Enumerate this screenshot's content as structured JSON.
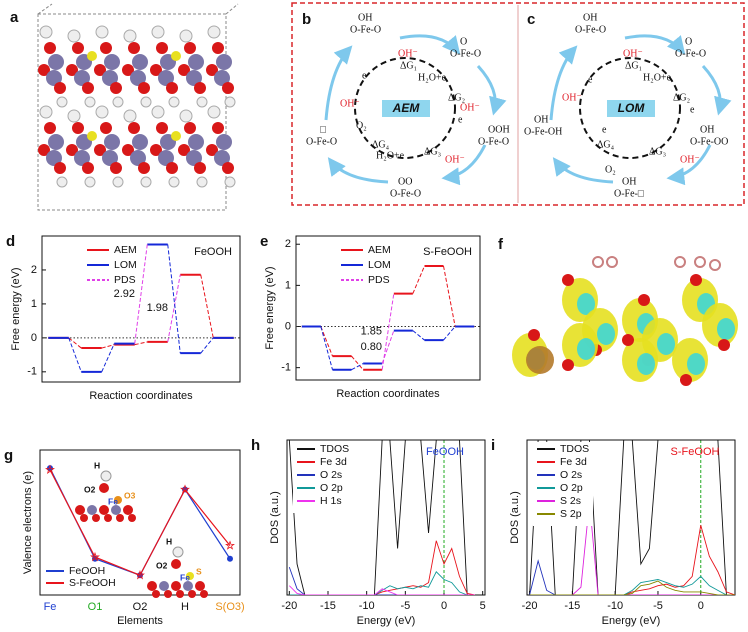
{
  "figure_labels": [
    "a",
    "b",
    "c",
    "f"
  ],
  "aem": {
    "center": "AEM",
    "nodes": [
      {
        "top": "OH",
        "bottom": "O-Fe-O"
      },
      {
        "top": "O",
        "bottom": "O-Fe-O"
      },
      {
        "top": "OOH",
        "bottom": "O-Fe-O"
      },
      {
        "top": "OO",
        "bottom": "O-Fe-O"
      },
      {
        "top": "□",
        "bottom": "O-Fe-O"
      }
    ],
    "steps": [
      "ΔG₁",
      "ΔG₂",
      "ΔG₃",
      "ΔG₄"
    ],
    "species": [
      "OH⁻",
      "H₂O+e",
      "OH⁻",
      "e",
      "H₂O+e",
      "OH⁻",
      "O₂",
      "OH⁻",
      "e"
    ]
  },
  "lom": {
    "center": "LOM",
    "nodes": [
      {
        "top": "OH",
        "bottom": "O-Fe-O"
      },
      {
        "top": "O",
        "bottom": "O-Fe-O"
      },
      {
        "top": "OH",
        "bottom": "O-Fe-OO"
      },
      {
        "top": "OH",
        "bottom": "O-Fe-□"
      },
      {
        "top": "OH",
        "bottom": "O-Fe-OH"
      }
    ],
    "steps": [
      "ΔG₁",
      "ΔG₂",
      "ΔG₃",
      "ΔG₄"
    ],
    "species": [
      "OH⁻",
      "H₂O+e",
      "e",
      "OH⁻",
      "e",
      "O₂",
      "OH⁻",
      "e"
    ]
  },
  "chart_data": [
    {
      "type": "step",
      "panel": "d",
      "y_label": "Free energy (eV)",
      "x_label": "Reaction coordinates",
      "inset_label": "FeOOH",
      "categories": [
        null,
        null,
        null,
        null,
        null,
        null
      ],
      "series": [
        {
          "name": "AEM",
          "color": "#e8141c",
          "values": [
            0,
            -0.3,
            -0.2,
            -0.12,
            1.86,
            0
          ]
        },
        {
          "name": "LOM",
          "color": "#1428d8",
          "values": [
            0,
            -1.0,
            -0.17,
            2.75,
            -0.45,
            0
          ]
        }
      ],
      "pds": {
        "name": "PDS",
        "color": "#e040e8"
      },
      "annotations": [
        "1.98",
        "2.92"
      ],
      "ylim": [
        -1.3,
        3.0
      ],
      "yticks": [
        -1,
        0,
        1,
        2
      ],
      "zero_line": true,
      "legend": "top-left"
    },
    {
      "type": "step",
      "panel": "e",
      "y_label": "Free energy (eV)",
      "x_label": "Reaction coordinates",
      "inset_label": "S-FeOOH",
      "categories": [
        null,
        null,
        null,
        null,
        null,
        null
      ],
      "series": [
        {
          "name": "AEM",
          "color": "#e8141c",
          "values": [
            0,
            -0.72,
            -1.05,
            0.8,
            1.47,
            0
          ]
        },
        {
          "name": "LOM",
          "color": "#1428d8",
          "values": [
            0,
            -1.05,
            -0.9,
            -0.1,
            -0.33,
            0
          ]
        }
      ],
      "pds": {
        "name": "PDS",
        "color": "#e040e8"
      },
      "annotations": [
        "1.85",
        "0.80"
      ],
      "ylim": [
        -1.3,
        2.2
      ],
      "yticks": [
        -1,
        0,
        1,
        2
      ],
      "zero_line": true,
      "legend": "top-left"
    },
    {
      "type": "line",
      "panel": "g",
      "y_label": "Valence electrons (e)",
      "x_label": "Elements",
      "categories": [
        "Fe",
        "O1",
        "O2",
        "H",
        "S(O3)"
      ],
      "category_colors": [
        "#1f3fd0",
        "#22aa22",
        "#111111",
        "#111111",
        "#e8901a"
      ],
      "series": [
        {
          "name": "FeOOH",
          "color": "#1f3fd0",
          "marker": "circle",
          "values": [
            1.65,
            -1.1,
            -1.6,
            1.0,
            -1.1
          ]
        },
        {
          "name": "S-FeOOH",
          "color": "#e8141c",
          "marker": "star",
          "values": [
            1.6,
            -1.05,
            -1.6,
            1.0,
            -0.7
          ]
        }
      ],
      "insets": [
        [
          "H",
          "O2",
          "Fe",
          "O3"
        ],
        [
          "H",
          "O2",
          "Fe",
          "S"
        ]
      ],
      "ylim": [
        -2.2,
        2.2
      ],
      "legend": "bottom-left"
    },
    {
      "type": "dos",
      "panel": "h",
      "y_label": "DOS (a.u.)",
      "x_label": "Energy (eV)",
      "inset_label": "FeOOH",
      "inset_color": "#1f3fd0",
      "x": [
        -20,
        -19,
        -18,
        -17,
        -16,
        -15,
        -14,
        -13,
        -12,
        -11,
        -10,
        -9,
        -8,
        -7,
        -6,
        -5,
        -4,
        -3,
        -2,
        -1,
        0,
        1,
        2,
        3,
        4
      ],
      "series": [
        {
          "name": "TDOS",
          "color": "#111111",
          "values": [
            10,
            2,
            0,
            0,
            0,
            0,
            0,
            0,
            0,
            0,
            0,
            0,
            10,
            10,
            3,
            10,
            10,
            10,
            4,
            10,
            10,
            10,
            10,
            0,
            0
          ]
        },
        {
          "name": "Fe 3d",
          "color": "#e8141c",
          "values": [
            0,
            0,
            0,
            0,
            0,
            0,
            0,
            0,
            0,
            0,
            0,
            0,
            0.2,
            0.3,
            0.4,
            0.5,
            0.6,
            0.5,
            0.8,
            3.5,
            2.0,
            3.0,
            1.2,
            0.1,
            0
          ]
        },
        {
          "name": "O 2s",
          "color": "#2233bb",
          "values": [
            1.8,
            0.4,
            0,
            0,
            0,
            0,
            0,
            0,
            0,
            0,
            0,
            0,
            0,
            0,
            0,
            0,
            0,
            0,
            0,
            0,
            0,
            0,
            0,
            0,
            0
          ]
        },
        {
          "name": "O 2p",
          "color": "#119999",
          "values": [
            0,
            0,
            0,
            0,
            0,
            0,
            0,
            0,
            0,
            0,
            0,
            0,
            0.3,
            0.6,
            0.4,
            0.5,
            0.4,
            0.6,
            0.5,
            1.5,
            1.0,
            0.8,
            0.2,
            0,
            0
          ]
        },
        {
          "name": "H 1s",
          "color": "#ee33ee",
          "values": [
            0.6,
            0.1,
            0,
            0,
            0,
            0,
            0,
            0,
            0,
            0,
            0,
            0,
            0.4,
            0.2,
            0,
            0,
            0,
            0,
            0,
            0,
            0,
            0,
            0,
            0,
            0
          ]
        }
      ],
      "xlim": [
        -20.3,
        5.3
      ],
      "xticks": [
        -20,
        -15,
        -10,
        -5,
        0,
        5
      ],
      "ylim": [
        0,
        10
      ],
      "fermi_line": true,
      "legend": "top-left"
    },
    {
      "type": "dos",
      "panel": "i",
      "y_label": "DOS (a.u.)",
      "x_label": "Energy (eV)",
      "inset_label": "S-FeOOH",
      "inset_color": "#e8141c",
      "x": [
        -20,
        -19,
        -18,
        -17,
        -16,
        -15,
        -14,
        -13,
        -12,
        -11,
        -10,
        -9,
        -8,
        -7,
        -6,
        -5,
        -4,
        -3,
        -2,
        -1,
        0,
        1,
        2,
        3,
        4
      ],
      "series": [
        {
          "name": "TDOS",
          "color": "#111111",
          "values": [
            0,
            10,
            10,
            0,
            0,
            0,
            10,
            10,
            0,
            0,
            0,
            10,
            10,
            2,
            3,
            10,
            10,
            10,
            10,
            10,
            10,
            10,
            10,
            0,
            0
          ]
        },
        {
          "name": "Fe 3d",
          "color": "#e8141c",
          "values": [
            0,
            0,
            0,
            0,
            0,
            0,
            0,
            0,
            0,
            0,
            0,
            0,
            0.2,
            0.3,
            0.4,
            0.6,
            0.7,
            0.5,
            0.6,
            1.2,
            4.5,
            2.5,
            1.5,
            0.2,
            0
          ]
        },
        {
          "name": "O 2s",
          "color": "#2233bb",
          "values": [
            0,
            2.2,
            0.3,
            0,
            0,
            0,
            0,
            0,
            0,
            0,
            0,
            0,
            0,
            0,
            0,
            0,
            0,
            0,
            0,
            0,
            0,
            0,
            0,
            0,
            0
          ]
        },
        {
          "name": "O 2p",
          "color": "#119999",
          "values": [
            0,
            0,
            0,
            0,
            0,
            0,
            0,
            0,
            0,
            0,
            0,
            0,
            0.3,
            0.8,
            0.9,
            1.0,
            0.8,
            0.6,
            0.5,
            0.7,
            1.2,
            0.6,
            0.3,
            0,
            0
          ]
        },
        {
          "name": "S 2s",
          "color": "#dd22dd",
          "values": [
            0,
            0,
            0,
            0,
            0,
            0,
            0.5,
            6.0,
            0,
            0,
            0,
            0,
            0,
            0,
            0,
            0,
            0,
            0,
            0,
            0,
            0,
            0,
            0,
            0,
            0
          ]
        },
        {
          "name": "S 2p",
          "color": "#888800",
          "values": [
            0,
            0,
            0,
            0,
            0,
            0,
            0,
            0,
            0,
            0,
            0,
            0,
            0.1,
            0.6,
            0.7,
            0.9,
            0.5,
            0.3,
            0.2,
            0.2,
            0.2,
            0.1,
            0,
            0,
            0
          ]
        }
      ],
      "xlim": [
        -20.3,
        4.0
      ],
      "xticks": [
        -20,
        -15,
        -10,
        -5,
        0
      ],
      "ylim": [
        0,
        10
      ],
      "fermi_line": true,
      "legend": "top-left"
    }
  ]
}
